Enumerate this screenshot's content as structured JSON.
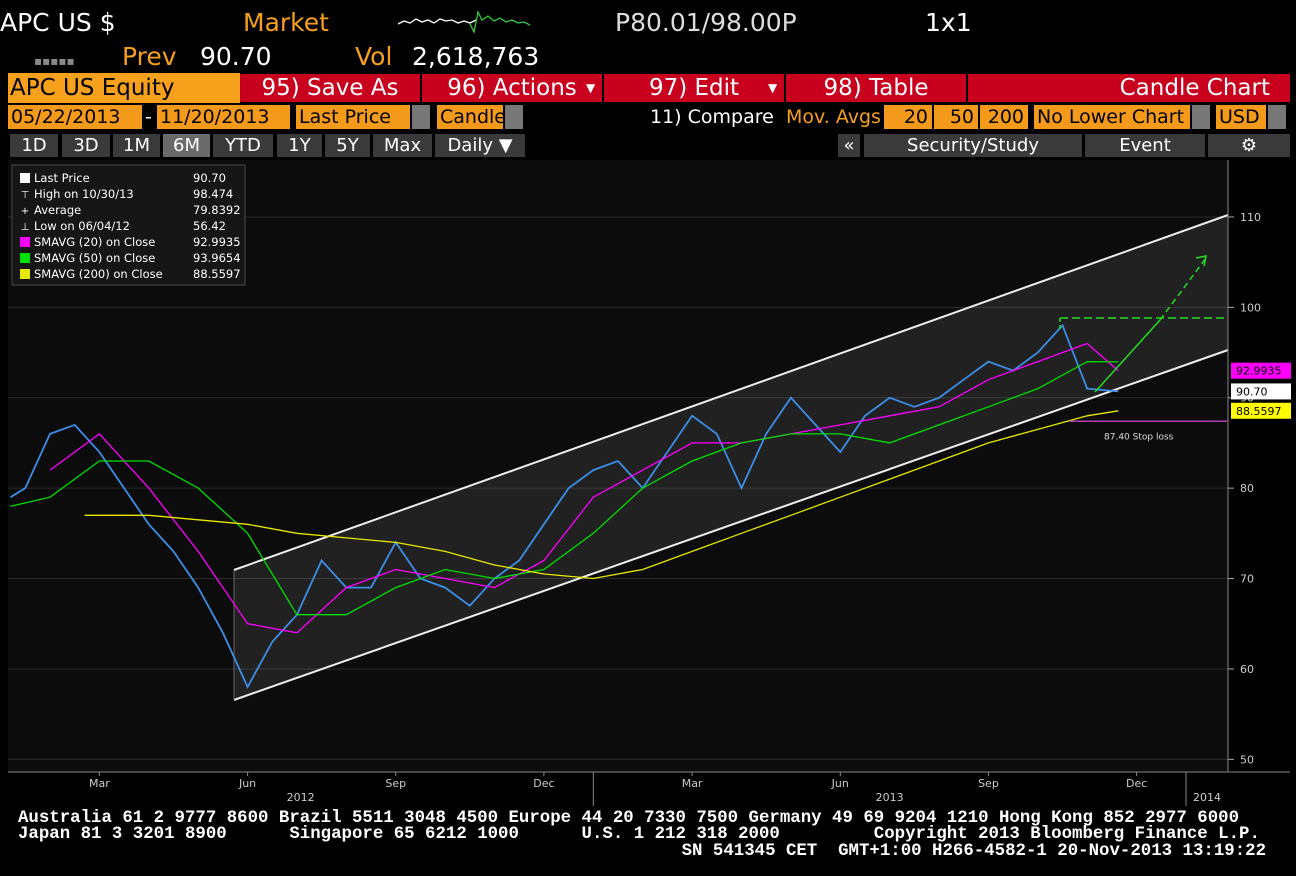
{
  "header": {
    "ticker": "APC US $",
    "market": "Market",
    "price_range": "P80.01/98.00P",
    "layout": "1x1",
    "prev_label": "Prev",
    "prev": "90.70",
    "vol_label": "Vol",
    "vol": "2,618,763"
  },
  "toolbar": {
    "security": "APC US Equity",
    "buttons": [
      "95) Save As",
      "96) Actions",
      "97) Edit",
      "98) Table"
    ],
    "chart_type": "Candle Chart"
  },
  "controls": {
    "start": "05/22/2013",
    "sep": "-",
    "end": "11/20/2013",
    "field": "Last Price",
    "style": "Candle",
    "compare": "11) Compare",
    "mov_avgs": "Mov. Avgs",
    "periods": [
      "20",
      "50",
      "200"
    ],
    "lower": "No Lower Chart",
    "currency": "USD"
  },
  "tabs": [
    "1D",
    "3D",
    "1M",
    "6M",
    "YTD",
    "1Y",
    "5Y",
    "Max",
    "Daily ▼"
  ],
  "active_tab": 3,
  "side_tabs": {
    "collapse": "«",
    "items": [
      "Security/Study",
      "Event"
    ]
  },
  "chart_data": {
    "type": "line",
    "xlim": [
      0.15,
      24.85
    ],
    "ylim": [
      48.6,
      116.3
    ],
    "yticks": [
      50,
      60,
      70,
      80,
      90,
      100,
      110
    ],
    "grid": true,
    "xticks": [
      {
        "value": 2,
        "label": "Mar"
      },
      {
        "value": 5,
        "label": "Jun"
      },
      {
        "value": 8,
        "label": "Sep"
      },
      {
        "value": 11,
        "label": "Dec"
      },
      {
        "value": 14,
        "label": "Mar"
      },
      {
        "value": 17,
        "label": "Jun"
      },
      {
        "value": 20,
        "label": "Sep"
      },
      {
        "value": 23,
        "label": "Dec"
      }
    ],
    "year_ticks": [
      {
        "value": 0,
        "label": "2012"
      },
      {
        "value": 12,
        "label": "2013"
      },
      {
        "value": 24,
        "label": "2014"
      }
    ],
    "series": [
      {
        "name": "Last Price",
        "legend_value": "90.70",
        "color": "#3d8ee6",
        "x": [
          0.2,
          0.5,
          1,
          1.5,
          2,
          2.5,
          3,
          3.5,
          4,
          4.5,
          5,
          5.5,
          6,
          6.5,
          7,
          7.5,
          8,
          8.5,
          9,
          9.5,
          10,
          10.5,
          11,
          11.5,
          12,
          12.5,
          13,
          13.5,
          14,
          14.5,
          15,
          15.5,
          16,
          16.5,
          17,
          17.5,
          18,
          18.5,
          19,
          19.5,
          20,
          20.5,
          21,
          21.5,
          22,
          22.63
        ],
        "values": [
          79,
          80,
          86,
          87,
          84,
          80,
          76,
          73,
          69,
          64,
          58,
          63,
          66,
          72,
          69,
          69,
          74,
          70,
          69,
          67,
          70,
          72,
          76,
          80,
          82,
          83,
          80,
          84,
          88,
          86,
          80,
          86,
          90,
          87,
          84,
          88,
          90,
          89,
          90,
          92,
          94,
          93,
          95,
          98,
          91,
          90.7
        ]
      },
      {
        "name": "SMAVG (20) on Close",
        "legend_value": "92.9935",
        "color": "#ff00ff",
        "x": [
          1,
          2,
          3,
          4,
          5,
          6,
          7,
          8,
          9,
          10,
          11,
          12,
          13,
          14,
          15,
          16,
          17,
          18,
          19,
          20,
          21,
          22,
          22.63
        ],
        "values": [
          82,
          86,
          80,
          73,
          65,
          64,
          69,
          71,
          70,
          69,
          72,
          79,
          82,
          85,
          85,
          86,
          87,
          88,
          89,
          92,
          94,
          96,
          92.99
        ]
      },
      {
        "name": "SMAVG (50) on Close",
        "legend_value": "93.9654",
        "color": "#00e000",
        "x": [
          0.2,
          1,
          2,
          3,
          4,
          5,
          6,
          7,
          8,
          9,
          10,
          11,
          12,
          13,
          14,
          15,
          16,
          17,
          18,
          19,
          20,
          21,
          22,
          22.63
        ],
        "values": [
          78,
          79,
          83,
          83,
          80,
          75,
          66,
          66,
          69,
          71,
          70,
          71,
          75,
          80,
          83,
          85,
          86,
          86,
          85,
          87,
          89,
          91,
          94,
          93.97
        ]
      },
      {
        "name": "SMAVG (200) on Close",
        "legend_value": "88.5597",
        "color": "#e8e800",
        "x": [
          1.7,
          3,
          4,
          5,
          6,
          7,
          8,
          9,
          10,
          11,
          12,
          13,
          14,
          15,
          16,
          17,
          18,
          19,
          20,
          21,
          22,
          22.63
        ],
        "values": [
          77,
          77,
          76.5,
          76,
          75,
          74.5,
          74,
          73,
          71.5,
          70.5,
          70,
          71,
          73,
          75,
          77,
          79,
          81,
          83,
          85,
          86.5,
          88,
          88.56
        ]
      }
    ],
    "stats": [
      {
        "label": "High on 10/30/13",
        "value": "98.474"
      },
      {
        "label": "Average",
        "value": "79.8392"
      },
      {
        "label": "Low on 06/04/12",
        "value": "56.42"
      }
    ],
    "price_labels": [
      {
        "value": 92.9935,
        "label": "92.9935",
        "color": "#ff00ff"
      },
      {
        "value": 90.7,
        "label": "90.70",
        "color": "#ffffff"
      },
      {
        "value": 88.5597,
        "label": "88.5597",
        "color": "#ffff00"
      }
    ],
    "stop_loss": {
      "value": 87.4,
      "label": "87.40 Stop loss"
    }
  },
  "footer": [
    "Australia 61 2 9777 8600 Brazil 5511 3048 4500 Europe 44 20 7330 7500 Germany 49 69 9204 1210 Hong Kong 852 2977 6000",
    "Japan 81 3 3201 8900      Singapore 65 6212 1000      U.S. 1 212 318 2000         Copyright 2013 Bloomberg Finance L.P.",
    "SN 541345 CET  GMT+1:00 H266-4582-1 20-Nov-2013 13:19:22"
  ]
}
